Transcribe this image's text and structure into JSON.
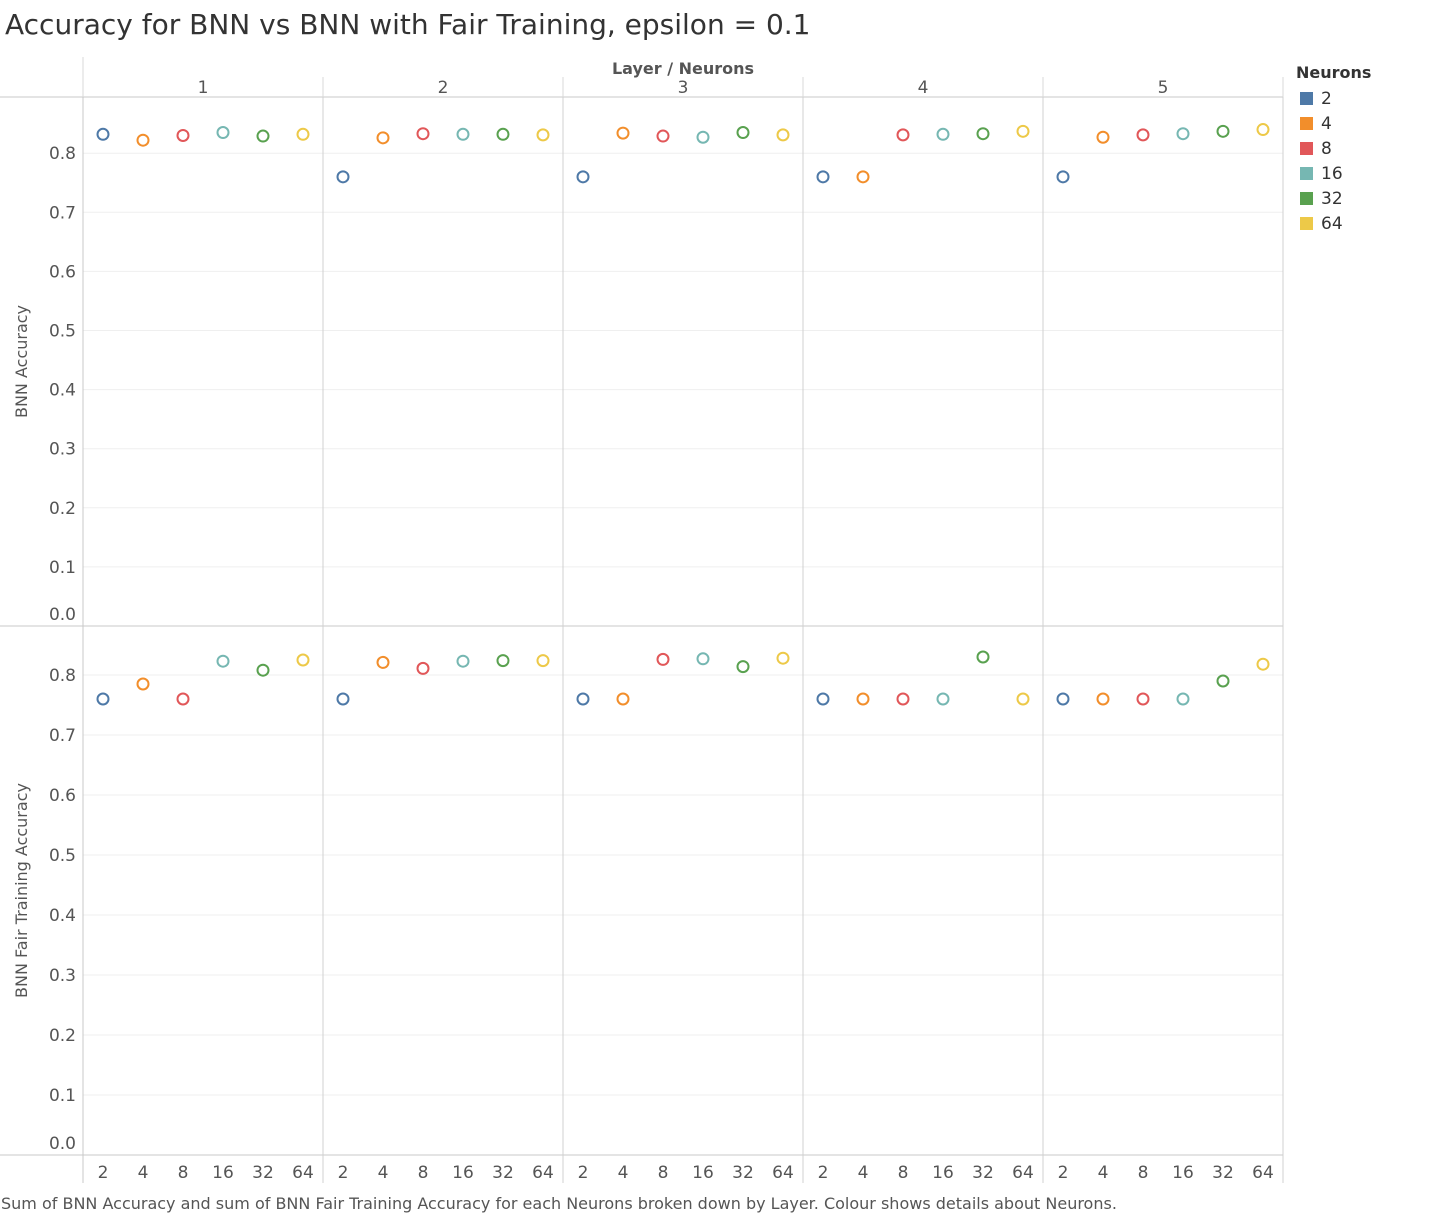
{
  "title": "Accuracy for BNN vs BNN with Fair Training, epsilon = 0.1",
  "caption": "Sum of BNN Accuracy and sum of BNN Fair Training Accuracy for each Neurons broken down by Layer.  Colour shows details about Neurons.",
  "legend": {
    "title": "Neurons",
    "items": [
      {
        "label": "2",
        "color": "#4e79a7"
      },
      {
        "label": "4",
        "color": "#f28e2b"
      },
      {
        "label": "8",
        "color": "#e15759"
      },
      {
        "label": "16",
        "color": "#76b7b2"
      },
      {
        "label": "32",
        "color": "#59a14f"
      },
      {
        "label": "64",
        "color": "#edc948"
      }
    ]
  },
  "chart_data": {
    "type": "scatter",
    "marker": "open-circle",
    "column_header_title": "Layer / Neurons",
    "layers": [
      "1",
      "2",
      "3",
      "4",
      "5"
    ],
    "neurons": [
      "2",
      "4",
      "8",
      "16",
      "32",
      "64"
    ],
    "grid": true,
    "legend_position": "top-right",
    "rows": [
      {
        "ylabel": "BNN Accuracy",
        "ylim": [
          0,
          0.87
        ],
        "yticks": [
          "0.0",
          "0.1",
          "0.2",
          "0.3",
          "0.4",
          "0.5",
          "0.6",
          "0.7",
          "0.8"
        ],
        "values": [
          [
            0.832,
            0.822,
            0.83,
            0.835,
            0.829,
            0.832
          ],
          [
            0.76,
            0.826,
            0.833,
            0.832,
            0.832,
            0.831
          ],
          [
            0.76,
            0.834,
            0.829,
            0.827,
            0.835,
            0.831
          ],
          [
            0.76,
            0.76,
            0.831,
            0.832,
            0.833,
            0.837
          ],
          [
            0.76,
            0.827,
            0.831,
            0.833,
            0.837,
            0.84
          ]
        ]
      },
      {
        "ylabel": "BNN Fair Training Accuracy",
        "ylim": [
          0,
          0.88
        ],
        "yticks": [
          "0.0",
          "0.1",
          "0.2",
          "0.3",
          "0.4",
          "0.5",
          "0.6",
          "0.7",
          "0.8"
        ],
        "values": [
          [
            0.76,
            0.785,
            0.76,
            0.823,
            0.808,
            0.825
          ],
          [
            0.76,
            0.821,
            0.811,
            0.823,
            0.824,
            0.824
          ],
          [
            0.76,
            0.76,
            0.826,
            0.827,
            0.814,
            0.828
          ],
          [
            0.76,
            0.76,
            0.76,
            0.76,
            0.83,
            0.76
          ],
          [
            0.76,
            0.76,
            0.76,
            0.76,
            0.79,
            0.818
          ]
        ]
      }
    ]
  }
}
